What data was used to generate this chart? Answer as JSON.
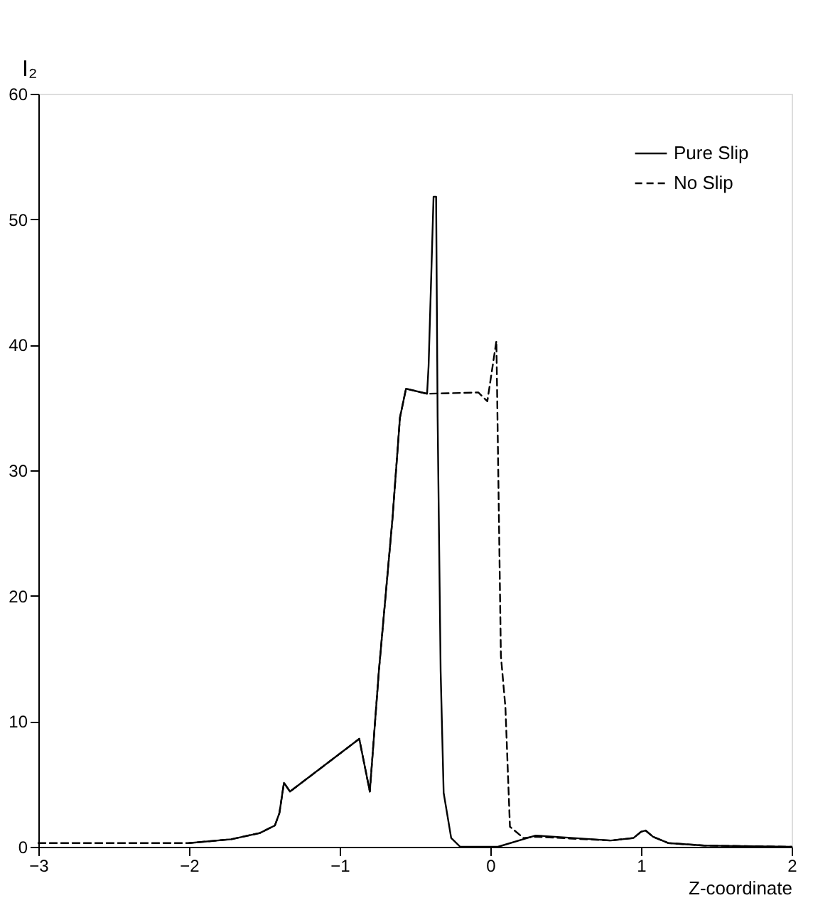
{
  "chart_data": {
    "type": "line",
    "xlabel": "Z-coordinate",
    "ylabel": "I₂",
    "xlim": [
      -3,
      2
    ],
    "xticks": [
      -3,
      -2,
      -1,
      0,
      1,
      2
    ],
    "ylim": [
      0,
      60
    ],
    "yticks": [
      0,
      10,
      20,
      30,
      40,
      50,
      60
    ],
    "grid": false,
    "legend": "top right",
    "marker": "none",
    "series": [
      {
        "name": "Pure Slip",
        "color": "#000000",
        "line_style": "solid",
        "x": [
          -2,
          -1.72,
          -1.53,
          -1.43,
          -1.4,
          -1.37,
          -1.33,
          -0.87,
          -0.8,
          -0.74,
          -0.65,
          -0.6,
          -0.56,
          -0.42,
          -0.41,
          -0.377,
          -0.36,
          -0.35,
          -0.33,
          -0.31,
          -0.26,
          -0.2,
          0.05,
          0.3,
          0.8,
          0.95,
          1.0,
          1.03,
          1.08,
          1.18,
          1.42,
          2
        ],
        "values": [
          0.3,
          0.6,
          1.1,
          1.7,
          2.7,
          5.1,
          4.4,
          8.6,
          4.4,
          14.0,
          26.1,
          34.2,
          36.5,
          36.1,
          38.3,
          51.8,
          51.8,
          34.2,
          14.0,
          4.3,
          0.7,
          0.0,
          0.0,
          0.9,
          0.5,
          0.7,
          1.2,
          1.3,
          0.8,
          0.3,
          0.1,
          0.0
        ]
      },
      {
        "name": "No Slip",
        "color": "#000000",
        "line_style": "dashed",
        "x": [
          -3,
          -2,
          -1.72,
          -1.53,
          -1.43,
          -1.4,
          -1.37,
          -1.33,
          -0.87,
          -0.8,
          -0.74,
          -0.65,
          -0.6,
          -0.56,
          -0.42,
          -0.08,
          -0.02,
          0.04,
          0.07,
          0.1,
          0.13,
          0.22,
          0.3,
          0.8,
          0.95,
          1.0,
          1.03,
          1.08,
          1.18,
          1.42,
          2
        ],
        "values": [
          0.3,
          0.3,
          0.6,
          1.1,
          1.7,
          2.7,
          5.1,
          4.4,
          8.6,
          4.4,
          14.0,
          26.1,
          34.2,
          36.5,
          36.1,
          36.2,
          35.5,
          40.3,
          15.2,
          11.1,
          1.6,
          0.7,
          0.8,
          0.5,
          0.7,
          1.2,
          1.3,
          0.8,
          0.3,
          0.1,
          0.0
        ]
      }
    ]
  }
}
